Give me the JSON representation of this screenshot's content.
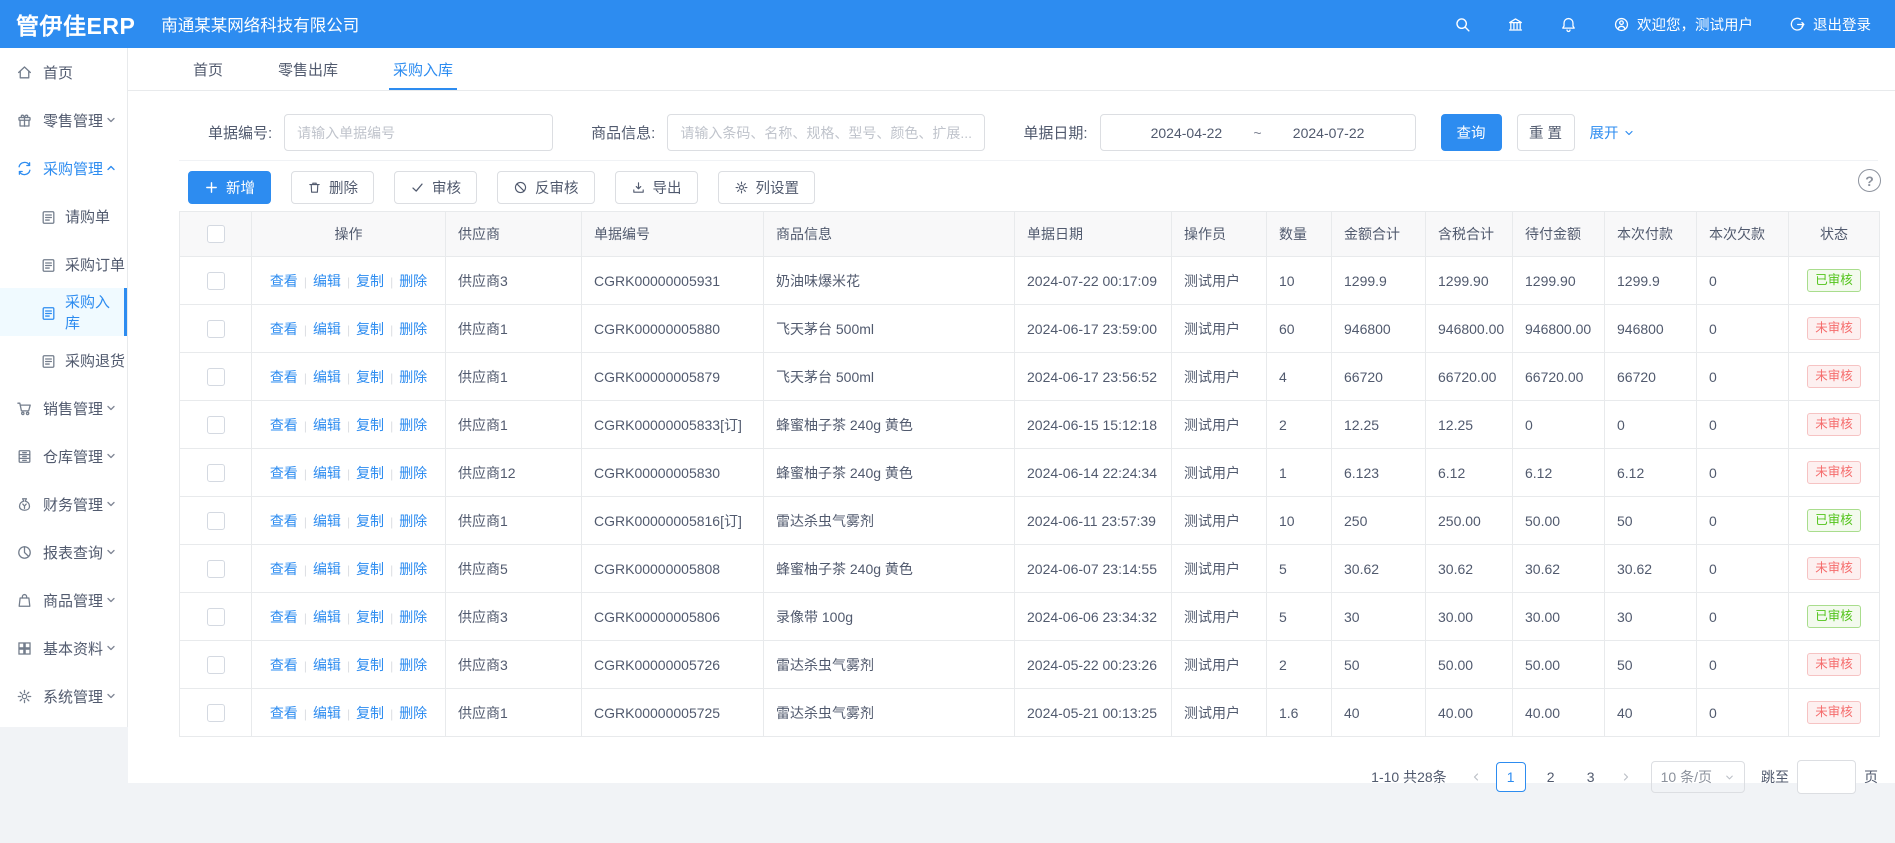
{
  "brand": {
    "logo": "管伊佳ERP",
    "company": "南通某某网络科技有限公司"
  },
  "topbar": {
    "welcome": "欢迎您，测试用户",
    "logout": "退出登录"
  },
  "tabs": [
    {
      "id": "home",
      "label": "首页",
      "active": false
    },
    {
      "id": "retail-outbound",
      "label": "零售出库",
      "active": false
    },
    {
      "id": "purchase-inbound",
      "label": "采购入库",
      "active": true
    }
  ],
  "sidebar": {
    "items": [
      {
        "id": "home",
        "icon": "home",
        "label": "首页"
      },
      {
        "id": "retail",
        "icon": "retail",
        "label": "零售管理",
        "chevron": "down"
      },
      {
        "id": "purchase",
        "icon": "sync",
        "label": "采购管理",
        "chevron": "up",
        "active": true,
        "children": [
          {
            "id": "purchase-request",
            "label": "请购单"
          },
          {
            "id": "purchase-order",
            "label": "采购订单"
          },
          {
            "id": "purchase-inbound",
            "label": "采购入库",
            "active": true
          },
          {
            "id": "purchase-return",
            "label": "采购退货"
          }
        ]
      },
      {
        "id": "sales",
        "icon": "cart",
        "label": "销售管理",
        "chevron": "down"
      },
      {
        "id": "warehouse",
        "icon": "warehouse",
        "label": "仓库管理",
        "chevron": "down"
      },
      {
        "id": "finance",
        "icon": "finance",
        "label": "财务管理",
        "chevron": "down"
      },
      {
        "id": "report",
        "icon": "report",
        "label": "报表查询",
        "chevron": "down"
      },
      {
        "id": "goods",
        "icon": "goods",
        "label": "商品管理",
        "chevron": "down"
      },
      {
        "id": "basic",
        "icon": "grid",
        "label": "基本资料",
        "chevron": "down"
      },
      {
        "id": "system",
        "icon": "gear",
        "label": "系统管理",
        "chevron": "down"
      }
    ]
  },
  "filters": {
    "bill_no_label": "单据编号:",
    "bill_no_placeholder": "请输入单据编号",
    "product_label": "商品信息:",
    "product_placeholder": "请输入条码、名称、规格、型号、颜色、扩展...",
    "date_label": "单据日期:",
    "date_start": "2024-04-22",
    "date_separator": "~",
    "date_end": "2024-07-22",
    "search": "查询",
    "reset": "重 置",
    "expand": "展开"
  },
  "toolbar": {
    "add": "新增",
    "delete": "删除",
    "audit": "审核",
    "unaudit": "反审核",
    "export": "导出",
    "columns": "列设置"
  },
  "help": {
    "label": "?"
  },
  "table": {
    "headers": [
      "操作",
      "供应商",
      "单据编号",
      "商品信息",
      "单据日期",
      "操作员",
      "数量",
      "金额合计",
      "含税合计",
      "待付金额",
      "本次付款",
      "本次欠款",
      "状态"
    ],
    "row_actions": [
      "查看",
      "编辑",
      "复制",
      "删除"
    ],
    "rows": [
      {
        "supplier": "供应商3",
        "bill_no": "CGRK00000005931",
        "product": "奶油味爆米花",
        "date": "2024-07-22 00:17:09",
        "operator": "测试用户",
        "qty": "10",
        "amount": "1299.9",
        "amount_tax": "1299.90",
        "payable": "1299.90",
        "paid": "1299.9",
        "owed": "0",
        "status": "已审核",
        "status_type": "approved"
      },
      {
        "supplier": "供应商1",
        "bill_no": "CGRK00000005880",
        "product": "飞天茅台 500ml",
        "date": "2024-06-17 23:59:00",
        "operator": "测试用户",
        "qty": "60",
        "amount": "946800",
        "amount_tax": "946800.00",
        "payable": "946800.00",
        "paid": "946800",
        "owed": "0",
        "status": "未审核",
        "status_type": "pending"
      },
      {
        "supplier": "供应商1",
        "bill_no": "CGRK00000005879",
        "product": "飞天茅台 500ml",
        "date": "2024-06-17 23:56:52",
        "operator": "测试用户",
        "qty": "4",
        "amount": "66720",
        "amount_tax": "66720.00",
        "payable": "66720.00",
        "paid": "66720",
        "owed": "0",
        "status": "未审核",
        "status_type": "pending"
      },
      {
        "supplier": "供应商1",
        "bill_no": "CGRK00000005833[订]",
        "product": "蜂蜜柚子茶 240g 黄色",
        "date": "2024-06-15 15:12:18",
        "operator": "测试用户",
        "qty": "2",
        "amount": "12.25",
        "amount_tax": "12.25",
        "payable": "0",
        "paid": "0",
        "owed": "0",
        "status": "未审核",
        "status_type": "pending"
      },
      {
        "supplier": "供应商12",
        "bill_no": "CGRK00000005830",
        "product": "蜂蜜柚子茶 240g 黄色",
        "date": "2024-06-14 22:24:34",
        "operator": "测试用户",
        "qty": "1",
        "amount": "6.123",
        "amount_tax": "6.12",
        "payable": "6.12",
        "paid": "6.12",
        "owed": "0",
        "status": "未审核",
        "status_type": "pending"
      },
      {
        "supplier": "供应商1",
        "bill_no": "CGRK00000005816[订]",
        "product": "雷达杀虫气雾剂",
        "date": "2024-06-11 23:57:39",
        "operator": "测试用户",
        "qty": "10",
        "amount": "250",
        "amount_tax": "250.00",
        "payable": "50.00",
        "paid": "50",
        "owed": "0",
        "status": "已审核",
        "status_type": "approved"
      },
      {
        "supplier": "供应商5",
        "bill_no": "CGRK00000005808",
        "product": "蜂蜜柚子茶 240g 黄色",
        "date": "2024-06-07 23:14:55",
        "operator": "测试用户",
        "qty": "5",
        "amount": "30.62",
        "amount_tax": "30.62",
        "payable": "30.62",
        "paid": "30.62",
        "owed": "0",
        "status": "未审核",
        "status_type": "pending"
      },
      {
        "supplier": "供应商3",
        "bill_no": "CGRK00000005806",
        "product": "录像带 100g",
        "date": "2024-06-06 23:34:32",
        "operator": "测试用户",
        "qty": "5",
        "amount": "30",
        "amount_tax": "30.00",
        "payable": "30.00",
        "paid": "30",
        "owed": "0",
        "status": "已审核",
        "status_type": "approved"
      },
      {
        "supplier": "供应商3",
        "bill_no": "CGRK00000005726",
        "product": "雷达杀虫气雾剂",
        "date": "2024-05-22 00:23:26",
        "operator": "测试用户",
        "qty": "2",
        "amount": "50",
        "amount_tax": "50.00",
        "payable": "50.00",
        "paid": "50",
        "owed": "0",
        "status": "未审核",
        "status_type": "pending"
      },
      {
        "supplier": "供应商1",
        "bill_no": "CGRK00000005725",
        "product": "雷达杀虫气雾剂",
        "date": "2024-05-21 00:13:25",
        "operator": "测试用户",
        "qty": "1.6",
        "amount": "40",
        "amount_tax": "40.00",
        "payable": "40.00",
        "paid": "40",
        "owed": "0",
        "status": "未审核",
        "status_type": "pending"
      }
    ]
  },
  "pagination": {
    "total": "1-10 共28条",
    "pages": [
      "1",
      "2",
      "3"
    ],
    "current": "1",
    "page_size": "10 条/页",
    "jump_label": "跳至",
    "page_unit": "页"
  },
  "colors": {
    "primary": "#2d8cf0",
    "approved_green": "#52c41a",
    "pending_red": "#f56c6c"
  }
}
